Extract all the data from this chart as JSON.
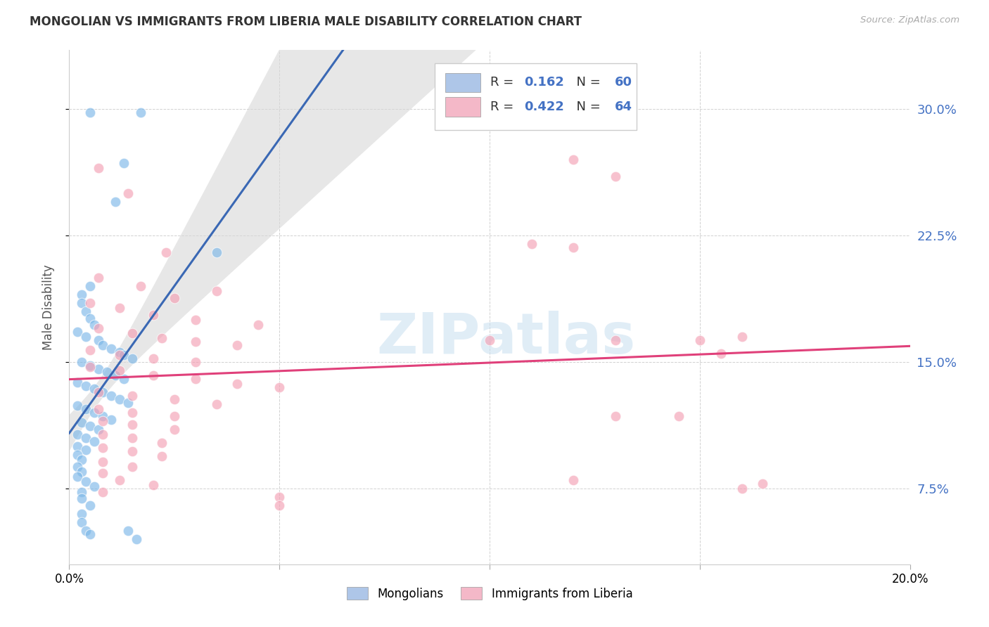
{
  "title": "MONGOLIAN VS IMMIGRANTS FROM LIBERIA MALE DISABILITY CORRELATION CHART",
  "source": "Source: ZipAtlas.com",
  "ylabel": "Male Disability",
  "ytick_labels": [
    "7.5%",
    "15.0%",
    "22.5%",
    "30.0%"
  ],
  "ytick_values": [
    0.075,
    0.15,
    0.225,
    0.3
  ],
  "xlim": [
    0.0,
    0.2
  ],
  "ylim": [
    0.03,
    0.335
  ],
  "mongolian_color": "#7db8e8",
  "liberia_color": "#f4a0b4",
  "mongolian_line_color": "#3a68b4",
  "liberia_line_color": "#e0407a",
  "ci_color": "#d8d8d8",
  "background_color": "#ffffff",
  "watermark_text": "ZIPatlas",
  "mongolian_points": [
    [
      0.005,
      0.298
    ],
    [
      0.017,
      0.298
    ],
    [
      0.013,
      0.268
    ],
    [
      0.011,
      0.245
    ],
    [
      0.035,
      0.215
    ],
    [
      0.005,
      0.195
    ],
    [
      0.003,
      0.19
    ],
    [
      0.003,
      0.185
    ],
    [
      0.004,
      0.18
    ],
    [
      0.005,
      0.176
    ],
    [
      0.006,
      0.172
    ],
    [
      0.002,
      0.168
    ],
    [
      0.004,
      0.165
    ],
    [
      0.007,
      0.163
    ],
    [
      0.008,
      0.16
    ],
    [
      0.01,
      0.158
    ],
    [
      0.012,
      0.156
    ],
    [
      0.013,
      0.154
    ],
    [
      0.015,
      0.152
    ],
    [
      0.003,
      0.15
    ],
    [
      0.005,
      0.148
    ],
    [
      0.007,
      0.146
    ],
    [
      0.009,
      0.144
    ],
    [
      0.011,
      0.142
    ],
    [
      0.013,
      0.14
    ],
    [
      0.002,
      0.138
    ],
    [
      0.004,
      0.136
    ],
    [
      0.006,
      0.134
    ],
    [
      0.008,
      0.132
    ],
    [
      0.01,
      0.13
    ],
    [
      0.012,
      0.128
    ],
    [
      0.014,
      0.126
    ],
    [
      0.002,
      0.124
    ],
    [
      0.004,
      0.122
    ],
    [
      0.006,
      0.12
    ],
    [
      0.008,
      0.118
    ],
    [
      0.01,
      0.116
    ],
    [
      0.003,
      0.114
    ],
    [
      0.005,
      0.112
    ],
    [
      0.007,
      0.11
    ],
    [
      0.002,
      0.107
    ],
    [
      0.004,
      0.105
    ],
    [
      0.006,
      0.103
    ],
    [
      0.002,
      0.1
    ],
    [
      0.004,
      0.098
    ],
    [
      0.002,
      0.095
    ],
    [
      0.003,
      0.092
    ],
    [
      0.002,
      0.088
    ],
    [
      0.003,
      0.085
    ],
    [
      0.002,
      0.082
    ],
    [
      0.004,
      0.079
    ],
    [
      0.006,
      0.076
    ],
    [
      0.003,
      0.073
    ],
    [
      0.003,
      0.069
    ],
    [
      0.005,
      0.065
    ],
    [
      0.003,
      0.06
    ],
    [
      0.003,
      0.055
    ],
    [
      0.004,
      0.05
    ],
    [
      0.005,
      0.048
    ],
    [
      0.014,
      0.05
    ],
    [
      0.016,
      0.045
    ]
  ],
  "liberia_points": [
    [
      0.007,
      0.265
    ],
    [
      0.014,
      0.25
    ],
    [
      0.023,
      0.215
    ],
    [
      0.007,
      0.2
    ],
    [
      0.017,
      0.195
    ],
    [
      0.035,
      0.192
    ],
    [
      0.025,
      0.188
    ],
    [
      0.005,
      0.185
    ],
    [
      0.012,
      0.182
    ],
    [
      0.02,
      0.178
    ],
    [
      0.03,
      0.175
    ],
    [
      0.045,
      0.172
    ],
    [
      0.007,
      0.17
    ],
    [
      0.015,
      0.167
    ],
    [
      0.022,
      0.164
    ],
    [
      0.03,
      0.162
    ],
    [
      0.04,
      0.16
    ],
    [
      0.005,
      0.157
    ],
    [
      0.012,
      0.154
    ],
    [
      0.02,
      0.152
    ],
    [
      0.03,
      0.15
    ],
    [
      0.005,
      0.147
    ],
    [
      0.012,
      0.145
    ],
    [
      0.02,
      0.142
    ],
    [
      0.03,
      0.14
    ],
    [
      0.04,
      0.137
    ],
    [
      0.05,
      0.135
    ],
    [
      0.007,
      0.132
    ],
    [
      0.015,
      0.13
    ],
    [
      0.025,
      0.128
    ],
    [
      0.035,
      0.125
    ],
    [
      0.007,
      0.122
    ],
    [
      0.015,
      0.12
    ],
    [
      0.025,
      0.118
    ],
    [
      0.008,
      0.115
    ],
    [
      0.015,
      0.113
    ],
    [
      0.025,
      0.11
    ],
    [
      0.008,
      0.107
    ],
    [
      0.015,
      0.105
    ],
    [
      0.022,
      0.102
    ],
    [
      0.008,
      0.099
    ],
    [
      0.015,
      0.097
    ],
    [
      0.022,
      0.094
    ],
    [
      0.008,
      0.091
    ],
    [
      0.015,
      0.088
    ],
    [
      0.008,
      0.084
    ],
    [
      0.012,
      0.08
    ],
    [
      0.02,
      0.077
    ],
    [
      0.008,
      0.073
    ],
    [
      0.05,
      0.07
    ],
    [
      0.05,
      0.065
    ],
    [
      0.1,
      0.163
    ],
    [
      0.12,
      0.27
    ],
    [
      0.13,
      0.26
    ],
    [
      0.11,
      0.22
    ],
    [
      0.12,
      0.218
    ],
    [
      0.13,
      0.163
    ],
    [
      0.15,
      0.163
    ],
    [
      0.155,
      0.155
    ],
    [
      0.16,
      0.165
    ],
    [
      0.13,
      0.118
    ],
    [
      0.145,
      0.118
    ],
    [
      0.165,
      0.078
    ],
    [
      0.16,
      0.075
    ],
    [
      0.12,
      0.08
    ]
  ]
}
